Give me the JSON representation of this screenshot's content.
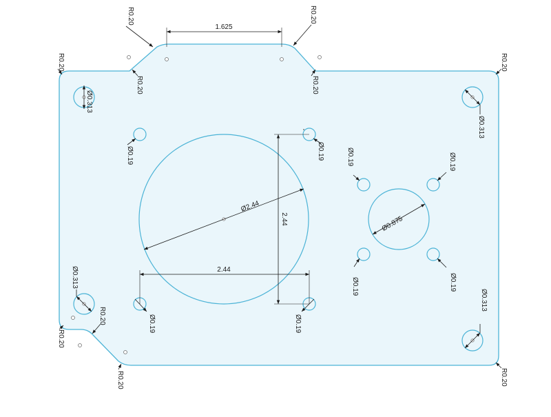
{
  "colors": {
    "outline": "#4bb3d6",
    "fill": "#eaf6fb",
    "dimension": "#1a1a1a"
  },
  "dimensions": {
    "top_width": "1.625",
    "big_hole_diameter": "Ø2.44",
    "big_hole_height": "2.44",
    "big_hole_width": "2.44",
    "center_hole_diameter": "Ø0.875",
    "corner_hole_tl": "Ø0.313",
    "corner_hole_tr": "Ø0.313",
    "corner_hole_bl": "Ø0.313",
    "corner_hole_br": "Ø0.313",
    "small_hole_a": "Ø0.19",
    "small_hole_b": "Ø0.19",
    "small_hole_c": "Ø0.19",
    "small_hole_d": "Ø0.19",
    "small_hole_e": "Ø0.19",
    "small_hole_f": "Ø0.19",
    "small_hole_g": "Ø0.19",
    "small_hole_h": "Ø0.19",
    "radius_top_left_1": "R0.20",
    "radius_top_left_2": "R0.20",
    "radius_top_right_1": "R0.20",
    "radius_top_right_2": "R0.20",
    "radius_outer_tl": "R0.20",
    "radius_outer_tr": "R0.20",
    "radius_bottom_left_1": "R0.20",
    "radius_bottom_left_2": "R0.20",
    "radius_bottom_left_3": "R0.20",
    "radius_outer_br": "R0.20"
  }
}
